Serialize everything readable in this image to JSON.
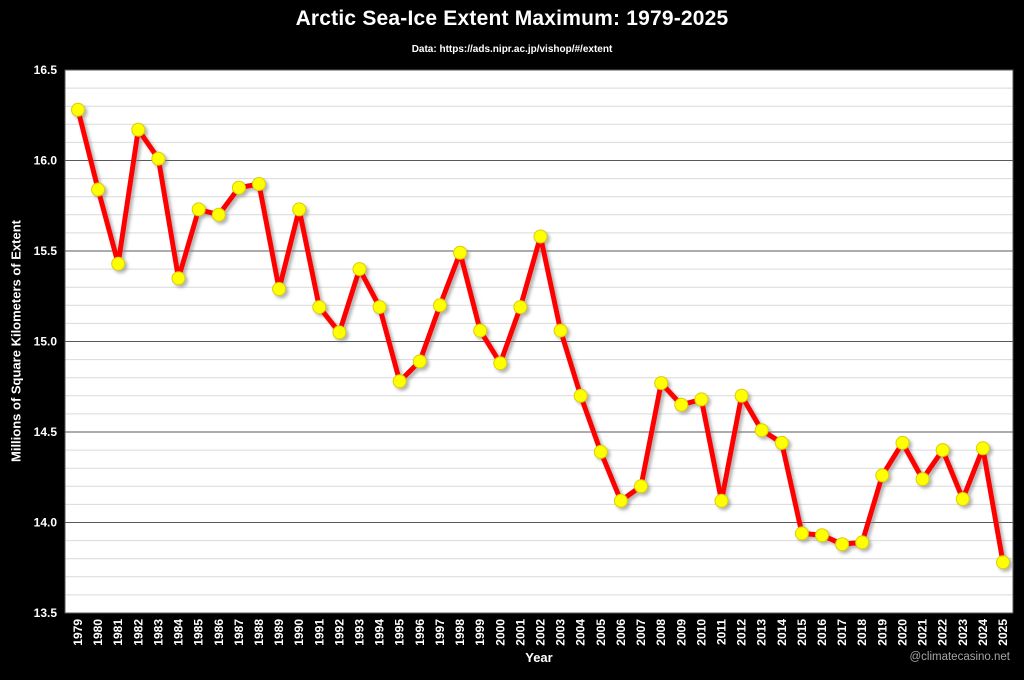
{
  "header": {
    "title": "Arctic Sea-Ice Extent Maximum: 1979-2025",
    "subtitle": "Data: https://ads.nipr.ac.jp/vishop/#/extent"
  },
  "footer": {
    "credit": "@climatecasino.net"
  },
  "chart_data": {
    "type": "line",
    "title": "Arctic Sea-Ice Extent Maximum: 1979-2025",
    "subtitle": "Data: https://ads.nipr.ac.jp/vishop/#/extent",
    "xlabel": "Year",
    "ylabel": "Millions of Square Kilometers of Extent",
    "ylim": [
      13.5,
      16.5
    ],
    "y_major_step": 0.5,
    "y_minor_step": 0.1,
    "grid": "horizontal-only",
    "legend": "none",
    "categories": [
      "1979",
      "1980",
      "1981",
      "1982",
      "1983",
      "1984",
      "1985",
      "1986",
      "1987",
      "1988",
      "1989",
      "1990",
      "1991",
      "1992",
      "1993",
      "1994",
      "1995",
      "1996",
      "1997",
      "1998",
      "1999",
      "2000",
      "2001",
      "2002",
      "2003",
      "2004",
      "2005",
      "2006",
      "2007",
      "2008",
      "2009",
      "2010",
      "2011",
      "2012",
      "2013",
      "2014",
      "2015",
      "2016",
      "2017",
      "2018",
      "2019",
      "2020",
      "2021",
      "2022",
      "2023",
      "2024",
      "2025"
    ],
    "series": [
      {
        "name": "Arctic sea-ice extent maximum",
        "values": [
          16.28,
          15.84,
          15.43,
          16.17,
          16.01,
          15.35,
          15.73,
          15.7,
          15.85,
          15.87,
          15.29,
          15.73,
          15.19,
          15.05,
          15.4,
          15.19,
          14.78,
          14.89,
          15.2,
          15.49,
          15.06,
          14.88,
          15.19,
          15.58,
          15.06,
          14.7,
          14.39,
          14.12,
          14.2,
          14.77,
          14.65,
          14.68,
          14.12,
          14.7,
          14.51,
          14.44,
          13.94,
          13.93,
          13.88,
          13.89,
          14.26,
          14.44,
          14.24,
          14.4,
          14.13,
          14.41,
          13.78
        ]
      }
    ],
    "colors": {
      "background": "#000000",
      "plot_background": "#ffffff",
      "minor_grid": "#d9d9d9",
      "major_grid": "#595959",
      "plot_border": "#595959",
      "line": "#ff0000",
      "marker_fill": "#ffff00",
      "marker_edge": "#d8d000",
      "text": "#ffffff",
      "credit_text": "#a6a6a6"
    }
  }
}
